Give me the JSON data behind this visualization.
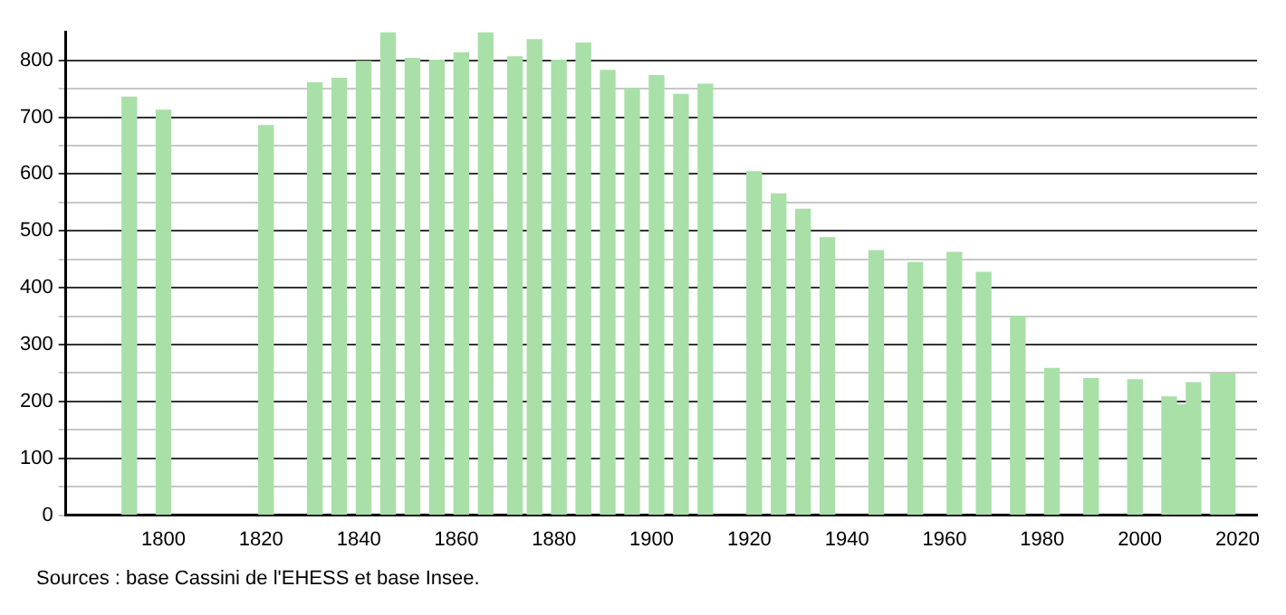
{
  "chart_data": {
    "type": "bar",
    "x": [
      1793,
      1800,
      1821,
      1831,
      1836,
      1841,
      1846,
      1851,
      1856,
      1861,
      1866,
      1872,
      1876,
      1881,
      1886,
      1891,
      1896,
      1901,
      1906,
      1911,
      1921,
      1926,
      1931,
      1936,
      1946,
      1954,
      1962,
      1968,
      1975,
      1982,
      1990,
      1999,
      2006,
      2008,
      2011,
      2016,
      2018
    ],
    "values": [
      735,
      712,
      685,
      760,
      768,
      798,
      848,
      803,
      800,
      813,
      848,
      806,
      836,
      800,
      830,
      782,
      750,
      773,
      740,
      758,
      604,
      565,
      538,
      488,
      465,
      444,
      462,
      427,
      350,
      258,
      240,
      238,
      208,
      194,
      233,
      248,
      248
    ],
    "color": "#a8e0a8",
    "xlim": [
      1780,
      2024
    ],
    "xticks": [
      1800,
      1820,
      1840,
      1860,
      1880,
      1900,
      1920,
      1940,
      1960,
      1980,
      2000,
      2020
    ],
    "ylim": [
      0,
      850
    ],
    "yticks": [
      0,
      {
        "value": 50,
        "label": null
      },
      100,
      {
        "value": 150,
        "label": null
      },
      200,
      {
        "value": 250,
        "label": null
      },
      300,
      {
        "value": 350,
        "label": null
      },
      400,
      {
        "value": 450,
        "label": null
      },
      500,
      {
        "value": 550,
        "label": null
      },
      600,
      {
        "value": 650,
        "label": null
      },
      700,
      {
        "value": 750,
        "label": null
      },
      800
    ],
    "grid": "y",
    "legend": false,
    "annotations": [
      "Sources : base Cassini de l'EHESS et base Insee."
    ]
  }
}
